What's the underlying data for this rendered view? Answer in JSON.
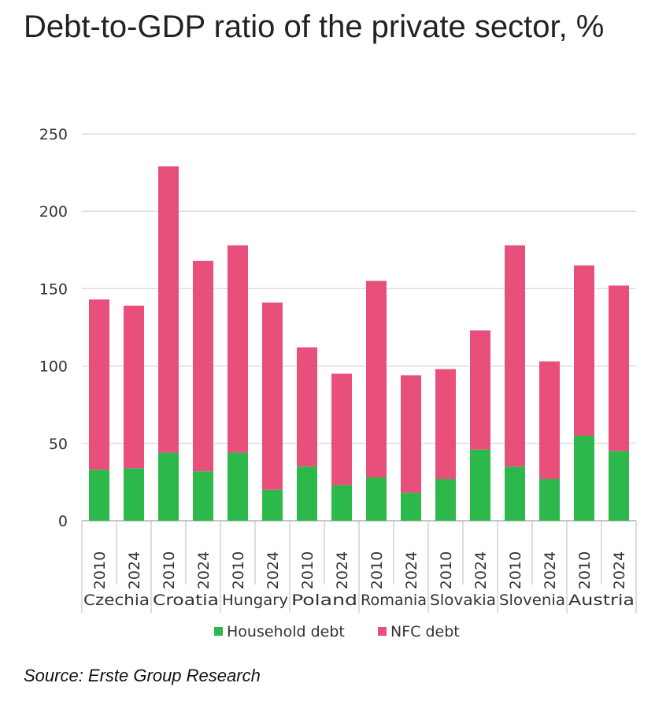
{
  "title": "Debt-to-GDP ratio of the private sector, %",
  "source": "Source: Erste Group Research",
  "chart_data": {
    "type": "bar",
    "stacked": true,
    "title": "Debt-to-GDP ratio of the private sector, %",
    "xlabel": "",
    "ylabel": "",
    "ylim": [
      0,
      250
    ],
    "yticks": [
      "0",
      "50",
      "100",
      "150",
      "200",
      "250"
    ],
    "grid": true,
    "legend_position": "bottom",
    "groups": [
      "Czechia",
      "Croatia",
      "Hungary",
      "Poland",
      "Romania",
      "Slovakia",
      "Slovenia",
      "Austria"
    ],
    "categories": [
      "2010",
      "2024",
      "2010",
      "2024",
      "2010",
      "2024",
      "2010",
      "2024",
      "2010",
      "2024",
      "2010",
      "2024",
      "2010",
      "2024",
      "2010",
      "2024"
    ],
    "series": [
      {
        "name": "Household debt",
        "color": "#2db84b",
        "values": [
          33,
          34,
          44,
          32,
          44,
          20,
          35,
          23,
          28,
          18,
          27,
          46,
          35,
          27,
          55,
          45
        ]
      },
      {
        "name": "NFC debt",
        "color": "#e84f7b",
        "values": [
          110,
          105,
          185,
          136,
          134,
          121,
          77,
          72,
          127,
          76,
          71,
          77,
          143,
          76,
          110,
          107
        ]
      }
    ]
  }
}
